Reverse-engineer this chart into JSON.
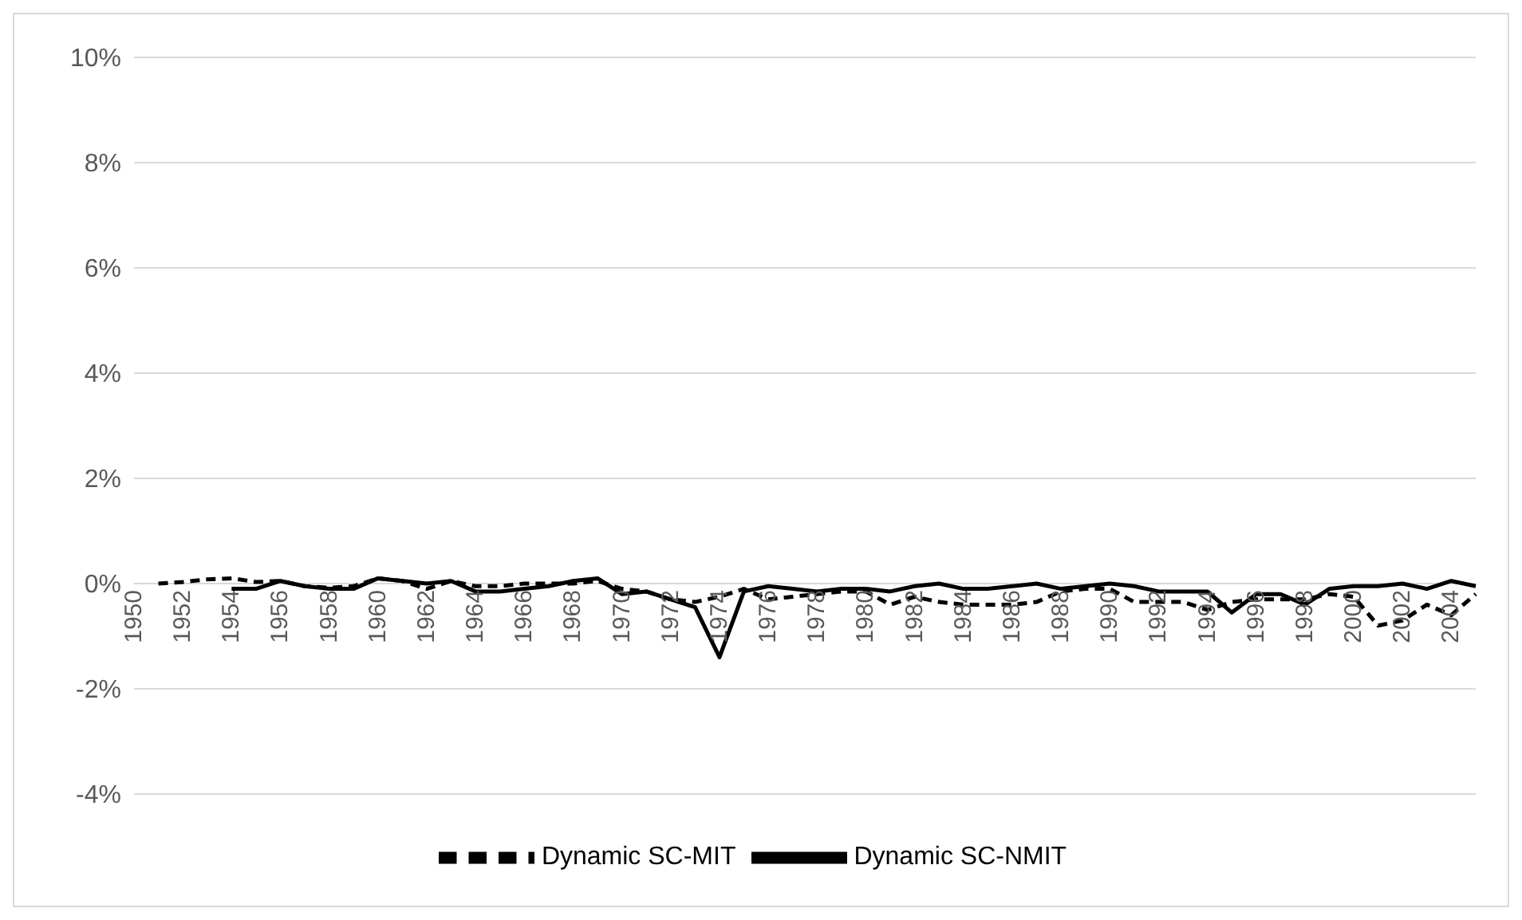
{
  "chart_data": {
    "type": "line",
    "categories": [
      "1950",
      null,
      "1952",
      null,
      "1954",
      null,
      "1956",
      null,
      "1958",
      null,
      "1960",
      null,
      "1962",
      null,
      "1964",
      null,
      "1966",
      null,
      "1968",
      null,
      "1970",
      null,
      "1972",
      null,
      "1974",
      null,
      "1976",
      null,
      "1978",
      null,
      "1980",
      null,
      "1982",
      null,
      "1984",
      null,
      "1986",
      null,
      "1988",
      null,
      "1990",
      null,
      "1992",
      null,
      "1994",
      null,
      "1996",
      null,
      "1998",
      null,
      "2000",
      null,
      "2002",
      null,
      "2004",
      null
    ],
    "series": [
      {
        "name": "Dynamic SC-MIT",
        "color": "#000000",
        "line_style": "dashed",
        "values": [
          null,
          0.0,
          0.03,
          0.08,
          0.1,
          0.03,
          0.05,
          -0.05,
          -0.08,
          -0.05,
          0.1,
          0.05,
          -0.1,
          0.05,
          -0.05,
          -0.05,
          0.0,
          0.0,
          0.0,
          0.05,
          -0.1,
          -0.15,
          -0.3,
          -0.35,
          -0.25,
          -0.1,
          -0.3,
          -0.25,
          -0.2,
          -0.15,
          -0.15,
          -0.4,
          -0.25,
          -0.35,
          -0.4,
          -0.4,
          -0.4,
          -0.35,
          -0.15,
          -0.1,
          -0.1,
          -0.35,
          -0.35,
          -0.35,
          -0.5,
          -0.35,
          -0.3,
          -0.3,
          -0.3,
          -0.2,
          -0.25,
          -0.8,
          -0.7,
          -0.4,
          -0.6,
          -0.2
        ]
      },
      {
        "name": "Dynamic SC-NMIT",
        "color": "#000000",
        "line_style": "solid",
        "values": [
          null,
          null,
          null,
          null,
          -0.1,
          -0.1,
          0.05,
          -0.05,
          -0.1,
          -0.1,
          0.1,
          0.05,
          0.0,
          0.05,
          -0.15,
          -0.15,
          -0.1,
          -0.05,
          0.05,
          0.1,
          -0.2,
          -0.15,
          -0.3,
          -0.45,
          -1.4,
          -0.15,
          -0.05,
          -0.1,
          -0.15,
          -0.1,
          -0.1,
          -0.15,
          -0.05,
          0.0,
          -0.1,
          -0.1,
          -0.05,
          0.0,
          -0.1,
          -0.05,
          0.0,
          -0.05,
          -0.15,
          -0.15,
          -0.15,
          -0.55,
          -0.2,
          -0.2,
          -0.4,
          -0.1,
          -0.05,
          -0.05,
          0.0,
          -0.1,
          0.05,
          -0.05
        ]
      }
    ],
    "ylim": [
      -4,
      10
    ],
    "yticks": [
      {
        "value": -4,
        "label": "-4%"
      },
      {
        "value": -2,
        "label": "-2%"
      },
      {
        "value": 0,
        "label": "0%"
      },
      {
        "value": 2,
        "label": "2%"
      },
      {
        "value": 4,
        "label": "4%"
      },
      {
        "value": 6,
        "label": "6%"
      },
      {
        "value": 8,
        "label": "8%"
      },
      {
        "value": 10,
        "label": "10%"
      }
    ],
    "grid": "y",
    "legend": "bottom",
    "marker": "none"
  }
}
